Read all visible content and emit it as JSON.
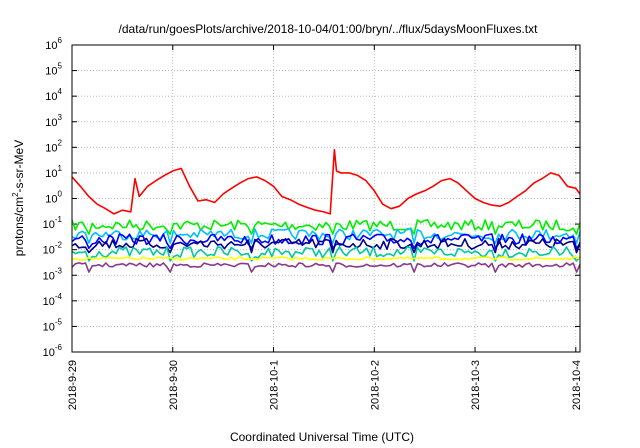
{
  "chart_data": {
    "type": "line",
    "title": "/data/run/goesPlots/archive/2018-10-04/01:00/bryn/../flux/5daysMoonFluxes.txt",
    "xlabel": "Coordinated Universal Time (UTC)",
    "ylabel": "protons/cm²-s-sr-MeV",
    "ylabel_parts": {
      "base": "protons/cm",
      "sup": "2",
      "rest": "-s-sr-MeV"
    },
    "y_scale": "log",
    "ylim": [
      1e-06,
      1000000.0
    ],
    "y_ticks": [
      {
        "base": "10",
        "exp": "-6",
        "value": 1e-06
      },
      {
        "base": "10",
        "exp": "-5",
        "value": 1e-05
      },
      {
        "base": "10",
        "exp": "-4",
        "value": 0.0001
      },
      {
        "base": "10",
        "exp": "-3",
        "value": 0.001
      },
      {
        "base": "10",
        "exp": "-2",
        "value": 0.01
      },
      {
        "base": "10",
        "exp": "-1",
        "value": 0.1
      },
      {
        "base": "10",
        "exp": "0",
        "value": 1
      },
      {
        "base": "10",
        "exp": "1",
        "value": 10
      },
      {
        "base": "10",
        "exp": "2",
        "value": 100
      },
      {
        "base": "10",
        "exp": "3",
        "value": 1000
      },
      {
        "base": "10",
        "exp": "4",
        "value": 10000
      },
      {
        "base": "10",
        "exp": "5",
        "value": 100000
      },
      {
        "base": "10",
        "exp": "6",
        "value": 1000000
      }
    ],
    "xlim": [
      "2018-09-29",
      "2018-10-04T01:00"
    ],
    "x_ticks": [
      {
        "label": "2018-9-29",
        "t": "2018-09-29"
      },
      {
        "label": "2018-9-30",
        "t": "2018-09-30"
      },
      {
        "label": "2018-10-1",
        "t": "2018-10-01"
      },
      {
        "label": "2018-10-2",
        "t": "2018-10-02"
      },
      {
        "label": "2018-10-3",
        "t": "2018-10-03"
      },
      {
        "label": "2018-10-4",
        "t": "2018-10-04"
      }
    ],
    "grid": true,
    "legend": "none",
    "series": [
      {
        "color": "#ff0000",
        "x": [
          "2018-09-29T00:00",
          "2018-09-29T02:00",
          "2018-09-29T04:00",
          "2018-09-29T06:00",
          "2018-09-29T08:00",
          "2018-09-29T10:00",
          "2018-09-29T12:00",
          "2018-09-29T14:00",
          "2018-09-29T15:00",
          "2018-09-29T16:00",
          "2018-09-29T18:00",
          "2018-09-29T20:00",
          "2018-09-29T22:00",
          "2018-09-30T00:00",
          "2018-09-30T02:00",
          "2018-09-30T04:00",
          "2018-09-30T06:00",
          "2018-09-30T08:00",
          "2018-09-30T10:00",
          "2018-09-30T12:00",
          "2018-09-30T14:00",
          "2018-09-30T16:00",
          "2018-09-30T18:00",
          "2018-09-30T20:00",
          "2018-09-30T22:00",
          "2018-10-01T00:00",
          "2018-10-01T02:00",
          "2018-10-01T04:00",
          "2018-10-01T06:00",
          "2018-10-01T08:00",
          "2018-10-01T10:00",
          "2018-10-01T12:00",
          "2018-10-01T13:30",
          "2018-10-01T14:30",
          "2018-10-01T15:00",
          "2018-10-01T16:00",
          "2018-10-01T18:00",
          "2018-10-01T20:00",
          "2018-10-01T22:00",
          "2018-10-02T00:00",
          "2018-10-02T02:00",
          "2018-10-02T04:00",
          "2018-10-02T06:00",
          "2018-10-02T08:00",
          "2018-10-02T10:00",
          "2018-10-02T12:00",
          "2018-10-02T14:00",
          "2018-10-02T16:00",
          "2018-10-02T18:00",
          "2018-10-02T20:00",
          "2018-10-02T22:00",
          "2018-10-03T00:00",
          "2018-10-03T02:00",
          "2018-10-03T04:00",
          "2018-10-03T06:00",
          "2018-10-03T08:00",
          "2018-10-03T10:00",
          "2018-10-03T12:00",
          "2018-10-03T14:00",
          "2018-10-03T16:00",
          "2018-10-03T18:00",
          "2018-10-03T20:00",
          "2018-10-03T22:00",
          "2018-10-04T00:00",
          "2018-10-04T01:00"
        ],
        "y": [
          7,
          3,
          1.2,
          0.6,
          0.4,
          0.25,
          0.35,
          0.3,
          6,
          1.2,
          3,
          5,
          8,
          12,
          15,
          3,
          0.8,
          0.9,
          0.7,
          1.5,
          2.5,
          4,
          6,
          7,
          5,
          3,
          1.2,
          0.9,
          0.6,
          0.45,
          0.35,
          0.3,
          0.25,
          80,
          12,
          10,
          10,
          8,
          5,
          2,
          0.6,
          0.4,
          0.5,
          1,
          1.5,
          2,
          3,
          5,
          6,
          4,
          2,
          1,
          0.7,
          0.55,
          0.5,
          0.7,
          1.2,
          2,
          4,
          6,
          10,
          8,
          3,
          2.5,
          1.5
        ]
      },
      {
        "color": "#00ee00",
        "x": [
          "2018-09-29T00:00",
          "2018-10-04T01:00"
        ],
        "y": [
          0.09,
          0.09
        ]
      },
      {
        "color": "#00bfff",
        "x": [
          "2018-09-29T00:00",
          "2018-10-04T01:00"
        ],
        "y": [
          0.04,
          0.04
        ]
      },
      {
        "color": "#0000ff",
        "x": [
          "2018-09-29T00:00",
          "2018-10-04T01:00"
        ],
        "y": [
          0.025,
          0.025
        ]
      },
      {
        "color": "#00008b",
        "x": [
          "2018-09-29T00:00",
          "2018-10-04T01:00"
        ],
        "y": [
          0.017,
          0.017
        ]
      },
      {
        "color": "#00c8a0",
        "x": [
          "2018-09-29T00:00",
          "2018-10-04T01:00"
        ],
        "y": [
          0.008,
          0.008
        ]
      },
      {
        "color": "#ffff00",
        "x": [
          "2018-09-29T00:00",
          "2018-10-04T01:00"
        ],
        "y": [
          0.0045,
          0.0045
        ]
      },
      {
        "color": "#8b3a8b",
        "x": [
          "2018-09-29T00:00",
          "2018-10-04T01:00"
        ],
        "y": [
          0.0025,
          0.0025
        ]
      }
    ]
  }
}
